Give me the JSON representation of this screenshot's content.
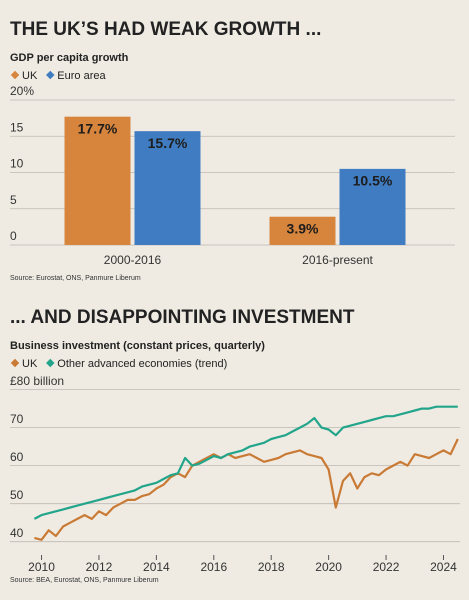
{
  "chart_data": [
    {
      "type": "bar",
      "title": "THE UK’S HAD WEAK GROWTH ...",
      "subtitle": "GDP per capita growth",
      "categories": [
        "2000-2016",
        "2016-present"
      ],
      "series": [
        {
          "name": "UK",
          "color": "#d7843c",
          "values": [
            17.7,
            3.9
          ],
          "value_labels": [
            "17.7%",
            "3.9%"
          ]
        },
        {
          "name": "Euro area",
          "color": "#3f7cc1",
          "values": [
            15.7,
            10.5
          ],
          "value_labels": [
            "15.7%",
            "10.5%"
          ]
        }
      ],
      "ylim": [
        0,
        20
      ],
      "yticks": [
        0,
        5,
        10,
        15,
        {
          "value": 20,
          "label": "20%"
        }
      ],
      "grid": true,
      "source": "Source: Eurostat, ONS, Panmure Liberum"
    },
    {
      "type": "line",
      "title": "... AND DISAPPOINTING INVESTMENT",
      "subtitle": "Business investment (constant prices, quarterly)",
      "x": [
        2009.75,
        2010,
        2010.25,
        2010.5,
        2010.75,
        2011,
        2011.25,
        2011.5,
        2011.75,
        2012,
        2012.25,
        2012.5,
        2012.75,
        2013,
        2013.25,
        2013.5,
        2013.75,
        2014,
        2014.25,
        2014.5,
        2014.75,
        2015,
        2015.25,
        2015.5,
        2015.75,
        2016,
        2016.25,
        2016.5,
        2016.75,
        2017,
        2017.25,
        2017.5,
        2017.75,
        2018,
        2018.25,
        2018.5,
        2018.75,
        2019,
        2019.25,
        2019.5,
        2019.75,
        2020,
        2020.25,
        2020.5,
        2020.75,
        2021,
        2021.25,
        2021.5,
        2021.75,
        2022,
        2022.25,
        2022.5,
        2022.75,
        2023,
        2023.25,
        2023.5,
        2023.75,
        2024,
        2024.25,
        2024.5
      ],
      "series": [
        {
          "name": "UK",
          "color": "#c97a35",
          "values": [
            41,
            40.5,
            43,
            41.5,
            44,
            45,
            46,
            47,
            46,
            48,
            47,
            49,
            50,
            51,
            51,
            52,
            52.5,
            54,
            55,
            57,
            58,
            57,
            60,
            61,
            62,
            63,
            62,
            63,
            62,
            62.5,
            63,
            62,
            61,
            61.5,
            62,
            63,
            63.5,
            64,
            63,
            62.5,
            62,
            59,
            49,
            56,
            58,
            54,
            57,
            58,
            57.5,
            59,
            60,
            61,
            60,
            63,
            62.5,
            62,
            63,
            64,
            63,
            67
          ]
        },
        {
          "name": "Other advanced economies (trend)",
          "color": "#23a58b",
          "values": [
            46,
            47,
            47.5,
            48,
            48.5,
            49,
            49.5,
            50,
            50.5,
            51,
            51.5,
            52,
            52.5,
            53,
            53.5,
            54.5,
            55,
            55.5,
            56.5,
            57.5,
            58,
            62,
            60,
            60.5,
            61.5,
            62.5,
            62,
            63,
            63.5,
            64,
            65,
            65.5,
            66,
            67,
            67.5,
            68,
            69,
            70,
            71,
            72.5,
            70,
            69.5,
            68,
            70,
            70.5,
            71,
            71.5,
            72,
            72.5,
            73,
            73,
            73.5,
            74,
            74.5,
            75,
            75,
            75.5,
            75.5,
            75.5,
            75.5
          ]
        }
      ],
      "xlim": [
        2009.25,
        2024.75
      ],
      "xticks": [
        2010,
        2012,
        2014,
        2016,
        2018,
        2020,
        2022,
        2024
      ],
      "ylim": [
        36.5,
        82
      ],
      "yticks": [
        40,
        50,
        60,
        70,
        {
          "value": 80,
          "label": "£80 billion"
        }
      ],
      "grid": true,
      "source": "Source: BEA, Eurostat, ONS, Panmure Liberum"
    }
  ]
}
